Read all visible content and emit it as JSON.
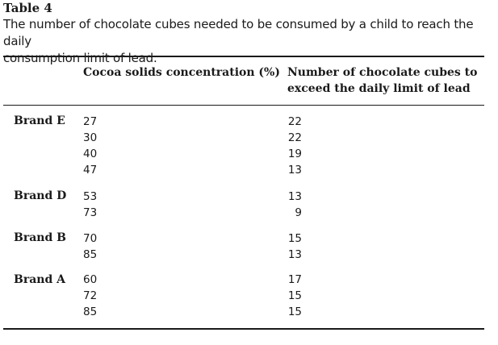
{
  "table": {
    "label": "Table 4",
    "title_line1": "The number of chocolate cubes needed to be consumed by a child to reach the daily",
    "title_line2": "consumption limit of lead.",
    "headers": {
      "brand": "",
      "concentration": "Cocoa solids concentration (%)",
      "cubes_line1": "Number of chocolate cubes to",
      "cubes_line2": "exceed the daily limit of lead"
    },
    "groups": [
      {
        "brand": "Brand E",
        "rows": [
          {
            "concentration": "27",
            "cubes": "22"
          },
          {
            "concentration": "30",
            "cubes": "22"
          },
          {
            "concentration": "40",
            "cubes": "19"
          },
          {
            "concentration": "47",
            "cubes": "13"
          }
        ]
      },
      {
        "brand": "Brand D",
        "rows": [
          {
            "concentration": "53",
            "cubes": "13"
          },
          {
            "concentration": "73",
            "cubes": "9"
          }
        ]
      },
      {
        "brand": "Brand B",
        "rows": [
          {
            "concentration": "70",
            "cubes": "15"
          },
          {
            "concentration": "85",
            "cubes": "13"
          }
        ]
      },
      {
        "brand": "Brand A",
        "rows": [
          {
            "concentration": "60",
            "cubes": "17"
          },
          {
            "concentration": "72",
            "cubes": "15"
          },
          {
            "concentration": "85",
            "cubes": "15"
          }
        ]
      }
    ]
  }
}
